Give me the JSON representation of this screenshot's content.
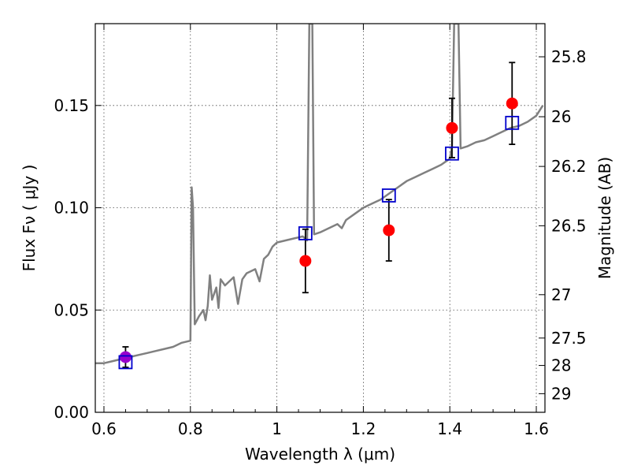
{
  "chart_data": {
    "type": "scatter",
    "xlabel": "Wavelength  λ (μm)",
    "ylabel": "Flux  Fν  ( μJy )",
    "ylabel_right": "Magnitude (AB)",
    "xlim": [
      0.58,
      1.62
    ],
    "ylim": [
      0.0,
      0.19
    ],
    "x_ticks": [
      0.6,
      0.8,
      1.0,
      1.2,
      1.4,
      1.6
    ],
    "x_tick_labels": [
      "0.6",
      "0.8",
      "1",
      "1.2",
      "1.4",
      "1.6"
    ],
    "y_ticks": [
      0.0,
      0.05,
      0.1,
      0.15
    ],
    "y_tick_labels": [
      "0.00",
      "0.05",
      "0.10",
      "0.15"
    ],
    "right_ticks": [
      {
        "label": "25.8",
        "flux": 0.1738
      },
      {
        "label": "26",
        "flux": 0.1445
      },
      {
        "label": "26.2",
        "flux": 0.1202
      },
      {
        "label": "26.5",
        "flux": 0.0912
      },
      {
        "label": "27",
        "flux": 0.0575
      },
      {
        "label": "27.5",
        "flux": 0.0363
      },
      {
        "label": "28",
        "flux": 0.0229
      },
      {
        "label": "29",
        "flux": 0.0091
      }
    ],
    "grid": true,
    "colors": {
      "model": "#808080",
      "observed": "#ff0000",
      "observed_first": "#9900cc",
      "synthetic": "#0000cc",
      "errorbar": "#000000"
    },
    "series": [
      {
        "values": [
          [
            0.58,
            0.024
          ],
          [
            0.6,
            0.024
          ],
          [
            0.62,
            0.025
          ],
          [
            0.64,
            0.026
          ],
          [
            0.66,
            0.027
          ],
          [
            0.68,
            0.028
          ],
          [
            0.7,
            0.029
          ],
          [
            0.72,
            0.03
          ],
          [
            0.74,
            0.031
          ],
          [
            0.76,
            0.032
          ],
          [
            0.78,
            0.034
          ],
          [
            0.8,
            0.035
          ],
          [
            0.803,
            0.11
          ],
          [
            0.806,
            0.1
          ],
          [
            0.81,
            0.043
          ],
          [
            0.82,
            0.047
          ],
          [
            0.83,
            0.05
          ],
          [
            0.835,
            0.045
          ],
          [
            0.84,
            0.052
          ],
          [
            0.845,
            0.067
          ],
          [
            0.85,
            0.055
          ],
          [
            0.86,
            0.061
          ],
          [
            0.865,
            0.051
          ],
          [
            0.87,
            0.065
          ],
          [
            0.88,
            0.062
          ],
          [
            0.89,
            0.064
          ],
          [
            0.9,
            0.066
          ],
          [
            0.91,
            0.053
          ],
          [
            0.92,
            0.065
          ],
          [
            0.93,
            0.068
          ],
          [
            0.94,
            0.069
          ],
          [
            0.95,
            0.07
          ],
          [
            0.96,
            0.064
          ],
          [
            0.97,
            0.075
          ],
          [
            0.98,
            0.077
          ],
          [
            0.99,
            0.081
          ],
          [
            1.0,
            0.083
          ],
          [
            1.02,
            0.084
          ],
          [
            1.04,
            0.085
          ],
          [
            1.06,
            0.086
          ],
          [
            1.07,
            0.084
          ],
          [
            1.075,
            0.19
          ],
          [
            1.082,
            0.19
          ],
          [
            1.086,
            0.087
          ],
          [
            1.1,
            0.088
          ],
          [
            1.12,
            0.09
          ],
          [
            1.14,
            0.092
          ],
          [
            1.15,
            0.09
          ],
          [
            1.16,
            0.094
          ],
          [
            1.18,
            0.097
          ],
          [
            1.2,
            0.1
          ],
          [
            1.22,
            0.102
          ],
          [
            1.24,
            0.104
          ],
          [
            1.26,
            0.107
          ],
          [
            1.28,
            0.11
          ],
          [
            1.3,
            0.113
          ],
          [
            1.32,
            0.115
          ],
          [
            1.34,
            0.117
          ],
          [
            1.36,
            0.119
          ],
          [
            1.38,
            0.121
          ],
          [
            1.4,
            0.124
          ],
          [
            1.405,
            0.13
          ],
          [
            1.41,
            0.19
          ],
          [
            1.42,
            0.19
          ],
          [
            1.425,
            0.129
          ],
          [
            1.44,
            0.13
          ],
          [
            1.46,
            0.132
          ],
          [
            1.48,
            0.133
          ],
          [
            1.5,
            0.135
          ],
          [
            1.52,
            0.137
          ],
          [
            1.54,
            0.139
          ],
          [
            1.56,
            0.14
          ],
          [
            1.58,
            0.142
          ],
          [
            1.6,
            0.145
          ],
          [
            1.615,
            0.15
          ]
        ]
      },
      {
        "values": [
          {
            "x": 0.65,
            "y": 0.027,
            "err": 0.005
          },
          {
            "x": 1.066,
            "y": 0.074,
            "err": 0.0155
          },
          {
            "x": 1.259,
            "y": 0.089,
            "err": 0.015
          },
          {
            "x": 1.405,
            "y": 0.139,
            "err": 0.0145
          },
          {
            "x": 1.544,
            "y": 0.151,
            "err": 0.02
          }
        ]
      },
      {
        "values": [
          {
            "x": 0.65,
            "y": 0.0245
          },
          {
            "x": 1.066,
            "y": 0.0875
          },
          {
            "x": 1.259,
            "y": 0.106
          },
          {
            "x": 1.405,
            "y": 0.1265
          },
          {
            "x": 1.544,
            "y": 0.1415
          }
        ]
      }
    ]
  }
}
